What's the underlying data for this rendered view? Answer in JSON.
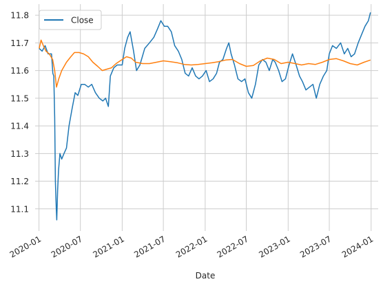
{
  "chart_data": {
    "type": "line",
    "title": "",
    "xlabel": "Date",
    "ylabel": "",
    "grid": true,
    "legend_position": "top-left",
    "xlim": [
      "2019-12-15",
      "2024-02-01"
    ],
    "ylim": [
      11.02,
      11.84
    ],
    "x_ticks": [
      "2020-01",
      "2020-07",
      "2021-01",
      "2021-07",
      "2022-01",
      "2022-07",
      "2023-01",
      "2023-07",
      "2024-01"
    ],
    "y_ticks": [
      11.1,
      11.2,
      11.3,
      11.4,
      11.5,
      11.6,
      11.7,
      11.8
    ],
    "series": [
      {
        "name": "Close",
        "color": "#1f77b4",
        "points": [
          [
            "2020-01-02",
            11.68
          ],
          [
            "2020-01-15",
            11.67
          ],
          [
            "2020-01-28",
            11.69
          ],
          [
            "2020-02-10",
            11.66
          ],
          [
            "2020-02-25",
            11.66
          ],
          [
            "2020-03-02",
            11.59
          ],
          [
            "2020-03-06",
            11.58
          ],
          [
            "2020-03-10",
            11.43
          ],
          [
            "2020-03-13",
            11.2
          ],
          [
            "2020-03-17",
            11.1
          ],
          [
            "2020-03-19",
            11.06
          ],
          [
            "2020-03-23",
            11.17
          ],
          [
            "2020-03-27",
            11.24
          ],
          [
            "2020-04-02",
            11.3
          ],
          [
            "2020-04-10",
            11.28
          ],
          [
            "2020-04-20",
            11.3
          ],
          [
            "2020-05-01",
            11.32
          ],
          [
            "2020-05-12",
            11.4
          ],
          [
            "2020-05-25",
            11.46
          ],
          [
            "2020-06-08",
            11.52
          ],
          [
            "2020-06-20",
            11.51
          ],
          [
            "2020-07-05",
            11.55
          ],
          [
            "2020-07-20",
            11.55
          ],
          [
            "2020-08-05",
            11.54
          ],
          [
            "2020-08-20",
            11.55
          ],
          [
            "2020-09-05",
            11.52
          ],
          [
            "2020-09-22",
            11.5
          ],
          [
            "2020-10-08",
            11.49
          ],
          [
            "2020-10-20",
            11.5
          ],
          [
            "2020-11-01",
            11.47
          ],
          [
            "2020-11-10",
            11.58
          ],
          [
            "2020-11-25",
            11.61
          ],
          [
            "2020-12-10",
            11.62
          ],
          [
            "2021-01-01",
            11.62
          ],
          [
            "2021-01-12",
            11.68
          ],
          [
            "2021-01-25",
            11.72
          ],
          [
            "2021-02-05",
            11.74
          ],
          [
            "2021-02-20",
            11.67
          ],
          [
            "2021-03-05",
            11.6
          ],
          [
            "2021-03-20",
            11.62
          ],
          [
            "2021-04-10",
            11.68
          ],
          [
            "2021-05-01",
            11.7
          ],
          [
            "2021-05-20",
            11.72
          ],
          [
            "2021-06-05",
            11.75
          ],
          [
            "2021-06-20",
            11.78
          ],
          [
            "2021-07-05",
            11.76
          ],
          [
            "2021-07-20",
            11.76
          ],
          [
            "2021-08-05",
            11.74
          ],
          [
            "2021-08-20",
            11.69
          ],
          [
            "2021-09-05",
            11.67
          ],
          [
            "2021-09-20",
            11.64
          ],
          [
            "2021-10-05",
            11.59
          ],
          [
            "2021-10-20",
            11.58
          ],
          [
            "2021-11-05",
            11.61
          ],
          [
            "2021-11-20",
            11.58
          ],
          [
            "2021-12-05",
            11.57
          ],
          [
            "2021-12-20",
            11.58
          ],
          [
            "2022-01-05",
            11.6
          ],
          [
            "2022-01-20",
            11.56
          ],
          [
            "2022-02-05",
            11.57
          ],
          [
            "2022-02-20",
            11.59
          ],
          [
            "2022-03-05",
            11.63
          ],
          [
            "2022-03-20",
            11.64
          ],
          [
            "2022-04-05",
            11.68
          ],
          [
            "2022-04-15",
            11.7
          ],
          [
            "2022-04-25",
            11.66
          ],
          [
            "2022-05-10",
            11.62
          ],
          [
            "2022-05-25",
            11.57
          ],
          [
            "2022-06-10",
            11.56
          ],
          [
            "2022-06-25",
            11.57
          ],
          [
            "2022-07-10",
            11.52
          ],
          [
            "2022-07-25",
            11.5
          ],
          [
            "2022-08-10",
            11.55
          ],
          [
            "2022-08-25",
            11.62
          ],
          [
            "2022-09-10",
            11.64
          ],
          [
            "2022-09-25",
            11.63
          ],
          [
            "2022-10-10",
            11.6
          ],
          [
            "2022-10-25",
            11.64
          ],
          [
            "2022-11-05",
            11.63
          ],
          [
            "2022-11-20",
            11.6
          ],
          [
            "2022-12-05",
            11.56
          ],
          [
            "2022-12-20",
            11.57
          ],
          [
            "2023-01-05",
            11.62
          ],
          [
            "2023-01-20",
            11.66
          ],
          [
            "2023-02-05",
            11.62
          ],
          [
            "2023-02-20",
            11.58
          ],
          [
            "2023-03-05",
            11.56
          ],
          [
            "2023-03-20",
            11.53
          ],
          [
            "2023-04-05",
            11.54
          ],
          [
            "2023-04-20",
            11.55
          ],
          [
            "2023-05-05",
            11.5
          ],
          [
            "2023-05-20",
            11.55
          ],
          [
            "2023-06-05",
            11.58
          ],
          [
            "2023-06-20",
            11.6
          ],
          [
            "2023-07-01",
            11.66
          ],
          [
            "2023-07-15",
            11.69
          ],
          [
            "2023-08-01",
            11.68
          ],
          [
            "2023-08-20",
            11.7
          ],
          [
            "2023-09-05",
            11.66
          ],
          [
            "2023-09-20",
            11.68
          ],
          [
            "2023-10-05",
            11.65
          ],
          [
            "2023-10-20",
            11.66
          ],
          [
            "2023-11-05",
            11.7
          ],
          [
            "2023-11-20",
            11.73
          ],
          [
            "2023-12-05",
            11.76
          ],
          [
            "2023-12-20",
            11.78
          ],
          [
            "2023-12-29",
            11.81
          ]
        ]
      },
      {
        "color": "#ff7f0e",
        "points": [
          [
            "2020-01-02",
            11.68
          ],
          [
            "2020-01-10",
            11.71
          ],
          [
            "2020-01-20",
            11.69
          ],
          [
            "2020-02-01",
            11.67
          ],
          [
            "2020-02-15",
            11.66
          ],
          [
            "2020-03-01",
            11.64
          ],
          [
            "2020-03-10",
            11.6
          ],
          [
            "2020-03-18",
            11.54
          ],
          [
            "2020-03-28",
            11.57
          ],
          [
            "2020-04-10",
            11.6
          ],
          [
            "2020-05-01",
            11.63
          ],
          [
            "2020-05-20",
            11.65
          ],
          [
            "2020-06-05",
            11.665
          ],
          [
            "2020-06-25",
            11.665
          ],
          [
            "2020-07-15",
            11.66
          ],
          [
            "2020-08-05",
            11.65
          ],
          [
            "2020-08-25",
            11.63
          ],
          [
            "2020-09-15",
            11.615
          ],
          [
            "2020-10-05",
            11.6
          ],
          [
            "2020-10-25",
            11.605
          ],
          [
            "2020-11-15",
            11.61
          ],
          [
            "2020-12-05",
            11.625
          ],
          [
            "2021-01-01",
            11.64
          ],
          [
            "2021-01-20",
            11.65
          ],
          [
            "2021-02-10",
            11.645
          ],
          [
            "2021-03-01",
            11.63
          ],
          [
            "2021-04-01",
            11.625
          ],
          [
            "2021-05-01",
            11.625
          ],
          [
            "2021-06-01",
            11.63
          ],
          [
            "2021-07-01",
            11.635
          ],
          [
            "2021-08-01",
            11.632
          ],
          [
            "2021-09-01",
            11.628
          ],
          [
            "2021-10-01",
            11.622
          ],
          [
            "2021-11-01",
            11.62
          ],
          [
            "2021-12-01",
            11.622
          ],
          [
            "2022-01-01",
            11.625
          ],
          [
            "2022-02-01",
            11.628
          ],
          [
            "2022-03-01",
            11.632
          ],
          [
            "2022-04-01",
            11.638
          ],
          [
            "2022-05-01",
            11.64
          ],
          [
            "2022-06-01",
            11.625
          ],
          [
            "2022-07-01",
            11.615
          ],
          [
            "2022-08-01",
            11.618
          ],
          [
            "2022-09-01",
            11.635
          ],
          [
            "2022-10-01",
            11.645
          ],
          [
            "2022-11-01",
            11.64
          ],
          [
            "2022-12-01",
            11.625
          ],
          [
            "2023-01-01",
            11.63
          ],
          [
            "2023-02-01",
            11.625
          ],
          [
            "2023-03-01",
            11.62
          ],
          [
            "2023-04-01",
            11.625
          ],
          [
            "2023-05-01",
            11.622
          ],
          [
            "2023-06-01",
            11.63
          ],
          [
            "2023-07-01",
            11.64
          ],
          [
            "2023-08-01",
            11.643
          ],
          [
            "2023-09-01",
            11.635
          ],
          [
            "2023-10-01",
            11.625
          ],
          [
            "2023-11-01",
            11.62
          ],
          [
            "2023-12-01",
            11.63
          ],
          [
            "2023-12-29",
            11.638
          ]
        ]
      }
    ]
  }
}
